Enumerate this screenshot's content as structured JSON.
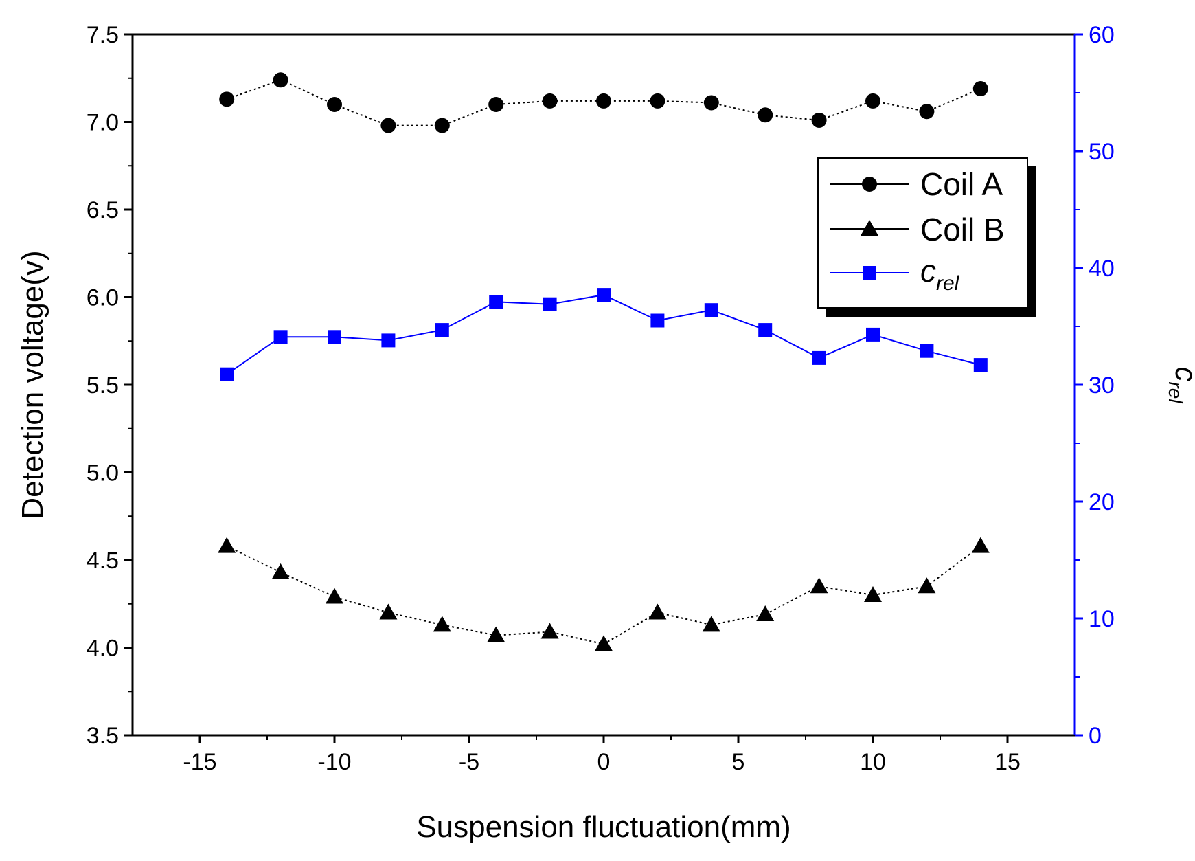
{
  "chart_data": {
    "type": "line",
    "xlabel": "Suspension fluctuation(mm)",
    "ylabel": "Detection voltage(v)",
    "y2label": {
      "main": "c",
      "sub": "rel"
    },
    "xlim": [
      -17.5,
      17.5
    ],
    "ylim": [
      3.5,
      7.5
    ],
    "y2lim": [
      0,
      60
    ],
    "xticks": [
      -15,
      -10,
      -5,
      0,
      5,
      10,
      15
    ],
    "xtick_labels": [
      "-15",
      "-10",
      "-5",
      "0",
      "5",
      "10",
      "15"
    ],
    "yticks": [
      3.5,
      4.0,
      4.5,
      5.0,
      5.5,
      6.0,
      6.5,
      7.0,
      7.5
    ],
    "ytick_labels": [
      "3.5",
      "4.0",
      "4.5",
      "5.0",
      "5.5",
      "6.0",
      "6.5",
      "7.0",
      "7.5"
    ],
    "y2ticks": [
      0,
      10,
      20,
      30,
      40,
      50,
      60
    ],
    "y2tick_labels": [
      "0",
      "10",
      "20",
      "30",
      "40",
      "50",
      "60"
    ],
    "x": [
      -14,
      -12,
      -10,
      -8,
      -6,
      -4,
      -2,
      0,
      2,
      4,
      6,
      8,
      10,
      12,
      14
    ],
    "series": [
      {
        "name": "Coil A",
        "axis": "left",
        "marker": "circle",
        "color": "#000000",
        "values": [
          7.13,
          7.24,
          7.1,
          6.98,
          6.98,
          7.1,
          7.12,
          7.12,
          7.12,
          7.11,
          7.04,
          7.01,
          7.12,
          7.06,
          7.19
        ]
      },
      {
        "name": "Coil B",
        "axis": "left",
        "marker": "triangle",
        "color": "#000000",
        "values": [
          4.58,
          4.43,
          4.29,
          4.2,
          4.13,
          4.07,
          4.09,
          4.02,
          4.2,
          4.13,
          4.19,
          4.35,
          4.3,
          4.35,
          4.58
        ]
      },
      {
        "name": "c_rel",
        "label_main": "c",
        "label_sub": "rel",
        "axis": "right",
        "marker": "square",
        "color": "#0000ff",
        "values": [
          30.9,
          34.1,
          34.1,
          33.8,
          34.7,
          37.1,
          36.9,
          37.7,
          35.5,
          36.4,
          34.7,
          32.3,
          34.3,
          32.9,
          31.7
        ]
      }
    ],
    "legend": {
      "position": "top-right",
      "entries": [
        {
          "label": "Coil A",
          "marker": "circle"
        },
        {
          "label": "Coil B",
          "marker": "triangle"
        },
        {
          "label_main": "c",
          "label_sub": "rel",
          "marker": "square"
        }
      ]
    },
    "grid": false
  }
}
